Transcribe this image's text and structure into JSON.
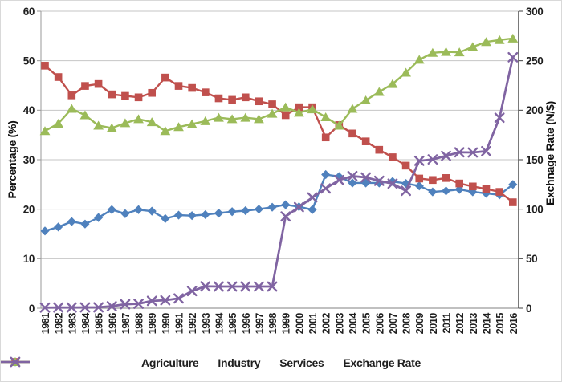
{
  "chart_data": {
    "type": "line",
    "title": "",
    "grid": "horizontal",
    "legend_position": "bottom",
    "x_labels": [
      "1981",
      "1982",
      "1983",
      "1984",
      "1985",
      "1986",
      "1987",
      "1988",
      "1989",
      "1990",
      "1991",
      "1992",
      "1993",
      "1994",
      "1995",
      "1996",
      "1997",
      "1998",
      "1999",
      "2000",
      "2001",
      "2002",
      "2003",
      "2004",
      "2005",
      "2006",
      "2007",
      "2008",
      "2009",
      "2010",
      "2011",
      "2012",
      "2013",
      "2014",
      "2015",
      "2016"
    ],
    "left_axis": {
      "title": "Percentage (%)",
      "min": 0,
      "max": 60,
      "step": 10,
      "tick_labels": [
        "0",
        "10",
        "20",
        "30",
        "40",
        "50",
        "60"
      ]
    },
    "right_axis": {
      "title": "Exchnage Rate (N/$)",
      "min": 0,
      "max": 300,
      "step": 50,
      "tick_labels": [
        "0",
        "50",
        "100",
        "150",
        "200",
        "250",
        "300"
      ]
    },
    "series": [
      {
        "name": "Agriculture",
        "axis": "left",
        "color": "#4F81BD",
        "marker": "diamond",
        "values": [
          15.6,
          16.4,
          17.5,
          17.0,
          18.3,
          19.9,
          19.1,
          19.9,
          19.6,
          18.1,
          18.8,
          18.7,
          18.9,
          19.2,
          19.5,
          19.7,
          20.0,
          20.4,
          20.9,
          20.5,
          19.9,
          27.0,
          26.6,
          25.3,
          25.3,
          25.3,
          25.6,
          25.2,
          24.7,
          23.5,
          23.7,
          24.0,
          23.5,
          23.2,
          22.9,
          25.0
        ]
      },
      {
        "name": "Industry",
        "axis": "left",
        "color": "#C0504D",
        "marker": "square",
        "values": [
          49.0,
          46.7,
          43.0,
          44.9,
          45.3,
          43.2,
          42.9,
          42.6,
          43.5,
          46.6,
          44.9,
          44.5,
          43.6,
          42.4,
          42.1,
          42.6,
          41.8,
          41.2,
          39.0,
          40.6,
          40.6,
          34.5,
          37.0,
          35.3,
          33.7,
          32.0,
          30.5,
          28.8,
          26.2,
          25.9,
          26.3,
          25.2,
          24.6,
          24.1,
          23.5,
          21.4
        ]
      },
      {
        "name": "Services",
        "axis": "left",
        "color": "#9BBB59",
        "marker": "triangle",
        "values": [
          35.8,
          37.3,
          40.3,
          39.0,
          36.9,
          36.4,
          37.4,
          38.2,
          37.6,
          35.8,
          36.6,
          37.2,
          37.8,
          38.5,
          38.2,
          38.5,
          38.2,
          39.3,
          40.6,
          39.5,
          40.2,
          38.6,
          36.9,
          40.3,
          42.0,
          43.7,
          45.3,
          47.6,
          50.2,
          51.6,
          51.8,
          51.7,
          52.8,
          53.8,
          54.2,
          54.5
        ]
      },
      {
        "name": "Exchange Rate",
        "axis": "right",
        "color": "#8064A2",
        "marker": "x",
        "values": [
          0.6,
          0.7,
          0.7,
          0.8,
          0.9,
          2.0,
          4.0,
          4.5,
          7.4,
          8.0,
          9.9,
          17.3,
          22.1,
          21.9,
          21.9,
          21.9,
          21.9,
          21.9,
          92.7,
          102.1,
          111.9,
          121.0,
          129.4,
          133.5,
          132.1,
          128.7,
          125.8,
          118.6,
          148.9,
          150.3,
          153.9,
          157.5,
          157.3,
          158.6,
          192.4,
          253.5
        ]
      }
    ]
  },
  "colors": {
    "gridline": "#c6c6c6",
    "axis_line": "#9a9a9a",
    "right_axis_line": "#404040",
    "text": "#1f1f1f",
    "background": "#ffffff"
  }
}
